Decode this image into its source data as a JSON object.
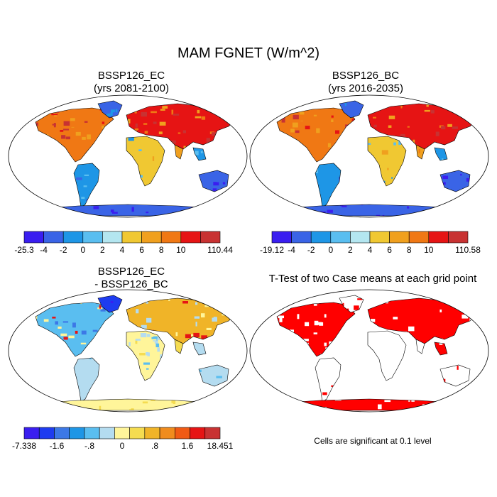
{
  "main_title": "MAM FGNET (W/m^2)",
  "panels": {
    "tl": {
      "title1": "BSSP126_EC",
      "title2": "(yrs 2081-2100)"
    },
    "tr": {
      "title1": "BSSP126_BC",
      "title2": "(yrs 2016-2035)"
    },
    "bl": {
      "title1": "BSSP126_EC",
      "title2": "- BSSP126_BC"
    },
    "br": {
      "title1": "T-Test of two Case means at each grid point",
      "note": "Cells are significant at 0.1 level"
    }
  },
  "colorbars": {
    "tl": {
      "labels": [
        "-25.3",
        "-4",
        "-2",
        "0",
        "2",
        "4",
        "6",
        "8",
        "10",
        "110.44"
      ],
      "colors": [
        "#3a1ef0",
        "#3a64e6",
        "#1e96e6",
        "#5abef0",
        "#b4e6f0",
        "#f0c832",
        "#f0a01e",
        "#f07814",
        "#e61414",
        "#c83232"
      ]
    },
    "tr": {
      "labels": [
        "-19.12",
        "-4",
        "-2",
        "0",
        "2",
        "4",
        "6",
        "8",
        "10",
        "110.58"
      ],
      "colors": [
        "#3a1ef0",
        "#3a64e6",
        "#1e96e6",
        "#5abef0",
        "#b4e6f0",
        "#f0c832",
        "#f0a01e",
        "#f07814",
        "#e61414",
        "#c83232"
      ]
    },
    "bl": {
      "labels": [
        "-7.338",
        "-1.6",
        "-.8",
        "0",
        ".8",
        "1.6",
        "18.451"
      ],
      "colors": [
        "#3a1ef0",
        "#1e3cf0",
        "#3c78e6",
        "#1e96e6",
        "#5abef0",
        "#b4dcf0",
        "#fff59a",
        "#f5dc50",
        "#f0b428",
        "#f08c1e",
        "#f05a14",
        "#e61414",
        "#c83232"
      ]
    }
  },
  "icons": {
    "map": "robinson-world-map"
  }
}
